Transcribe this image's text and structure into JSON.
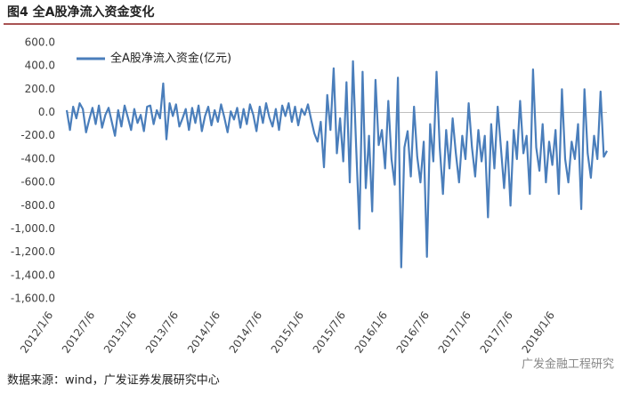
{
  "chart_data": {
    "type": "line",
    "title": "图4 全A股净流入资金变化",
    "source": "数据来源：wind，广发证券发展研究中心",
    "watermark": "广发金融工程研究",
    "legend": "top-left",
    "ylim": [
      -1600,
      600
    ],
    "yticks": [
      {
        "value": 600,
        "label": "600.0"
      },
      {
        "value": 400,
        "label": "400.0"
      },
      {
        "value": 200,
        "label": "200.0"
      },
      {
        "value": 0,
        "label": "0.0"
      },
      {
        "value": -200,
        "label": "-200.0"
      },
      {
        "value": -400,
        "label": "-400.0"
      },
      {
        "value": -600,
        "label": "-600.0"
      },
      {
        "value": -800,
        "label": "-800.0"
      },
      {
        "value": -1000,
        "label": "-1,000.0"
      },
      {
        "value": -1200,
        "label": "-1,200.0"
      },
      {
        "value": -1400,
        "label": "-1,400.0"
      },
      {
        "value": -1600,
        "label": "-1,600.0"
      }
    ],
    "categories": [
      "2012/1/6",
      null,
      null,
      null,
      null,
      null,
      null,
      null,
      null,
      null,
      null,
      null,
      null,
      "2012/7/6",
      null,
      null,
      null,
      null,
      null,
      null,
      null,
      null,
      null,
      null,
      null,
      null,
      "2013/1/6",
      null,
      null,
      null,
      null,
      null,
      null,
      null,
      null,
      null,
      null,
      null,
      null,
      "2013/7/6",
      null,
      null,
      null,
      null,
      null,
      null,
      null,
      null,
      null,
      null,
      null,
      null,
      "2014/1/6",
      null,
      null,
      null,
      null,
      null,
      null,
      null,
      null,
      null,
      null,
      null,
      null,
      "2014/7/6",
      null,
      null,
      null,
      null,
      null,
      null,
      null,
      null,
      null,
      null,
      null,
      null,
      "2015/1/6",
      null,
      null,
      null,
      null,
      null,
      null,
      null,
      null,
      null,
      null,
      null,
      null,
      "2015/7/6",
      null,
      null,
      null,
      null,
      null,
      null,
      null,
      null,
      null,
      null,
      null,
      null,
      "2016/1/6",
      null,
      null,
      null,
      null,
      null,
      null,
      null,
      null,
      null,
      null,
      null,
      null,
      "2016/7/6",
      null,
      null,
      null,
      null,
      null,
      null,
      null,
      null,
      null,
      null,
      null,
      null,
      "2017/1/6",
      null,
      null,
      null,
      null,
      null,
      null,
      null,
      null,
      null,
      null,
      null,
      null,
      "2017/7/6",
      null,
      null,
      null,
      null,
      null,
      null,
      null,
      null,
      null,
      null,
      null,
      null,
      "2018/1/6",
      null,
      null,
      null,
      null,
      null,
      null,
      null,
      null,
      null,
      null,
      null,
      null
    ],
    "series": [
      {
        "name": "全A股净流入资金(亿元)",
        "color": "#4a7ebb",
        "values": [
          20,
          -150,
          50,
          -50,
          80,
          30,
          -170,
          -60,
          40,
          -100,
          60,
          -130,
          -20,
          40,
          -80,
          -200,
          20,
          -120,
          60,
          -40,
          -150,
          30,
          -90,
          -20,
          -160,
          50,
          60,
          -100,
          20,
          -50,
          250,
          -230,
          80,
          -30,
          70,
          -120,
          -50,
          30,
          -150,
          40,
          -90,
          60,
          -160,
          -30,
          50,
          -110,
          20,
          -80,
          70,
          -40,
          -170,
          10,
          -60,
          40,
          -130,
          30,
          -100,
          70,
          -20,
          -160,
          50,
          -90,
          80,
          -40,
          -120,
          30,
          -150,
          60,
          -30,
          80,
          -80,
          50,
          -110,
          30,
          -20,
          70,
          -60,
          -180,
          -250,
          -80,
          -470,
          150,
          -150,
          380,
          -350,
          -50,
          -420,
          260,
          -600,
          440,
          -300,
          -1000,
          350,
          -650,
          -200,
          -850,
          280,
          -280,
          -150,
          -480,
          100,
          -400,
          -620,
          300,
          -1330,
          -300,
          -160,
          -550,
          50,
          -380,
          -600,
          -250,
          -1240,
          -100,
          -420,
          350,
          -300,
          -700,
          -150,
          -480,
          -50,
          -350,
          -600,
          -200,
          -400,
          80,
          -300,
          -550,
          -150,
          -420,
          -200,
          -900,
          -100,
          -480,
          50,
          -300,
          -650,
          -250,
          -800,
          -150,
          -400,
          100,
          -350,
          -200,
          -700,
          370,
          -300,
          -500,
          -100,
          -600,
          -250,
          -450,
          -150,
          -700,
          200,
          -400,
          -600,
          -250,
          -400,
          -100,
          -830,
          200,
          -350,
          -560,
          -200,
          -400,
          180,
          -380,
          -330
        ]
      }
    ]
  }
}
